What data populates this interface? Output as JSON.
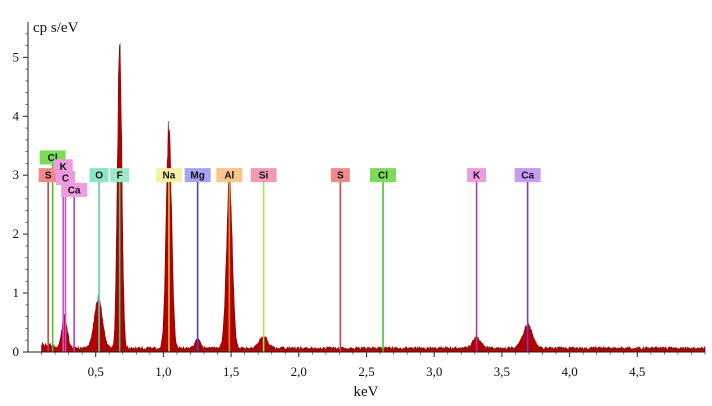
{
  "chart_data": {
    "type": "line",
    "title": "",
    "xlabel": "keV",
    "ylabel": "cp s/eV",
    "xlim": [
      0.0,
      5.0
    ],
    "ylim": [
      0.0,
      5.6
    ],
    "x_ticks": [
      0.5,
      1.0,
      1.5,
      2.0,
      2.5,
      3.0,
      3.5,
      4.0,
      4.5
    ],
    "x_tick_labels": [
      "0,5",
      "1,0",
      "1,5",
      "2,0",
      "2,5",
      "3,0",
      "3,5",
      "4,0",
      "4,5"
    ],
    "y_ticks": [
      0,
      1,
      2,
      3,
      4,
      5
    ],
    "y_tick_labels": [
      "0",
      "1",
      "2",
      "3",
      "4",
      "5"
    ],
    "grid": false,
    "spectrum_color": "#b00000",
    "peaks": [
      {
        "energy": 0.27,
        "height": 0.55,
        "width": 0.02
      },
      {
        "energy": 0.52,
        "height": 0.85,
        "width": 0.03
      },
      {
        "energy": 0.677,
        "height": 5.4,
        "width": 0.016
      },
      {
        "energy": 1.041,
        "height": 3.72,
        "width": 0.02
      },
      {
        "energy": 1.253,
        "height": 0.15,
        "width": 0.02
      },
      {
        "energy": 1.487,
        "height": 2.75,
        "width": 0.022
      },
      {
        "energy": 1.74,
        "height": 0.2,
        "width": 0.03
      },
      {
        "energy": 3.313,
        "height": 0.18,
        "width": 0.03
      },
      {
        "energy": 3.69,
        "height": 0.4,
        "width": 0.035
      }
    ],
    "markers": [
      {
        "label": "Cl",
        "energy": 0.182,
        "label_y": 3.2,
        "color": "#7bdc5a",
        "line_color": "#49c42a"
      },
      {
        "label": "S",
        "energy": 0.149,
        "label_y": 2.9,
        "color": "#f08a8a",
        "line_color": "#cc4444"
      },
      {
        "label": "K",
        "energy": 0.26,
        "label_y": 3.05,
        "color": "#ef9be0",
        "line_color": "#d04fcc"
      },
      {
        "label": "C",
        "energy": 0.277,
        "label_y": 2.85,
        "color": "#ef9be0",
        "line_color": "#d04fcc"
      },
      {
        "label": "Ca",
        "energy": 0.341,
        "label_y": 2.65,
        "color": "#ef9be0",
        "line_color": "#b444cc"
      },
      {
        "label": "O",
        "energy": 0.525,
        "label_y": 2.9,
        "color": "#8ae6c7",
        "line_color": "#5ad0a8"
      },
      {
        "label": "F",
        "energy": 0.677,
        "label_y": 2.9,
        "color": "#9ee8c8",
        "line_color": "#44c27c"
      },
      {
        "label": "Na",
        "energy": 1.041,
        "label_y": 2.9,
        "color": "#f6f0a0",
        "line_color": "#d4c43a"
      },
      {
        "label": "Mg",
        "energy": 1.253,
        "label_y": 2.9,
        "color": "#a7a3f0",
        "line_color": "#4a44d8"
      },
      {
        "label": "Al",
        "energy": 1.487,
        "label_y": 2.9,
        "color": "#f7c48a",
        "line_color": "#d88a2a"
      },
      {
        "label": "Si",
        "energy": 1.74,
        "label_y": 2.9,
        "color": "#f09ab8",
        "line_color": "#a8e050"
      },
      {
        "label": "S",
        "energy": 2.307,
        "label_y": 2.9,
        "color": "#f08a8a",
        "line_color": "#cc4444"
      },
      {
        "label": "Cl",
        "energy": 2.622,
        "label_y": 2.9,
        "color": "#7bdc5a",
        "line_color": "#49c42a"
      },
      {
        "label": "K",
        "energy": 3.313,
        "label_y": 2.9,
        "color": "#ef9be0",
        "line_color": "#b03aa8"
      },
      {
        "label": "Ca",
        "energy": 3.69,
        "label_y": 2.9,
        "color": "#c59af0",
        "line_color": "#7a3ad8"
      }
    ]
  }
}
